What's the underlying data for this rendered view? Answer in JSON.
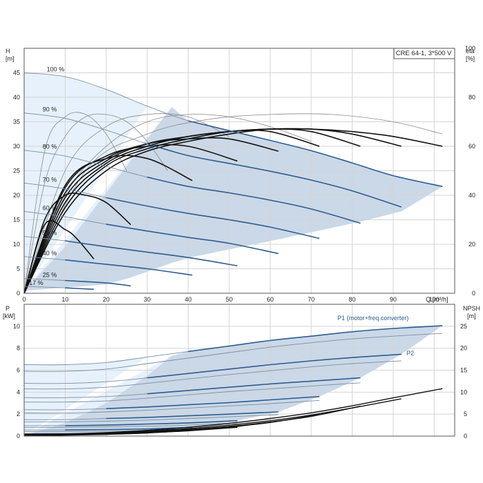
{
  "title_box": "CRE 64-1, 3*500 V",
  "chart_data": [
    {
      "type": "line",
      "name_role": "upper",
      "title": "CRE 64-1, 3*500 V",
      "xlabel": "Q [m³/h]",
      "ylabel_left": "H\n[m]",
      "ylabel_right": "eta\n[%]",
      "xlim": [
        0,
        105
      ],
      "ylim_left": [
        0,
        50
      ],
      "ylim_right": [
        0,
        100
      ],
      "x_ticks": [
        0,
        10,
        20,
        30,
        40,
        50,
        60,
        70,
        80,
        90,
        100
      ],
      "y_ticks_left": [
        0,
        5,
        10,
        15,
        20,
        25,
        30,
        35,
        40,
        45
      ],
      "y_ticks_right": [
        0,
        20,
        40,
        60,
        80,
        100
      ],
      "grid": true,
      "head_curves": [
        {
          "label": "100 %",
          "x": [
            0,
            10,
            20,
            30,
            40,
            50,
            60,
            70,
            80,
            90,
            102
          ],
          "y": [
            45,
            44.2,
            41.6,
            38.2,
            35.2,
            33.2,
            31.2,
            29.1,
            26.6,
            24.0,
            21.8
          ]
        },
        {
          "label": "90 %",
          "x": [
            0,
            10,
            20,
            30,
            40,
            50,
            60,
            70,
            80,
            92
          ],
          "y": [
            36.8,
            35.7,
            33.3,
            30.5,
            28.1,
            26.5,
            24.9,
            23.1,
            20.9,
            17.6
          ]
        },
        {
          "label": "80 %",
          "x": [
            0,
            10,
            20,
            30,
            40,
            50,
            60,
            70,
            82
          ],
          "y": [
            29.2,
            28.0,
            25.9,
            23.7,
            21.8,
            20.5,
            19.0,
            17.2,
            14.3
          ]
        },
        {
          "label": "70 %",
          "x": [
            0,
            10,
            20,
            30,
            40,
            50,
            60,
            72
          ],
          "y": [
            22.5,
            21.3,
            19.5,
            17.8,
            16.3,
            15.0,
            13.5,
            11.2
          ]
        },
        {
          "label": "60 %",
          "x": [
            0,
            10,
            20,
            30,
            40,
            50,
            62
          ],
          "y": [
            16.7,
            15.6,
            14.1,
            12.7,
            11.4,
            10.2,
            8.1
          ]
        },
        {
          "label": "50 %",
          "x": [
            0,
            10,
            20,
            30,
            40,
            52
          ],
          "y": [
            11.6,
            10.7,
            9.5,
            8.4,
            7.3,
            5.6
          ]
        },
        {
          "label": "40 %",
          "x": [
            0,
            10,
            20,
            30,
            41
          ],
          "y": [
            7.5,
            6.8,
            5.9,
            5.0,
            3.7
          ]
        },
        {
          "label": "25 %",
          "x": [
            0,
            10,
            20,
            26
          ],
          "y": [
            3.0,
            2.6,
            2.1,
            1.5
          ]
        },
        {
          "label": "17 %",
          "x": [
            0,
            10,
            17
          ],
          "y": [
            1.4,
            1.1,
            0.8
          ]
        }
      ],
      "operating_range": {
        "x": [
          0,
          20,
          26,
          36,
          41,
          52,
          62,
          72,
          82,
          92,
          102,
          102,
          90,
          80,
          70,
          60,
          50,
          40,
          36,
          30,
          20,
          10,
          0
        ],
        "y": [
          0.5,
          1.8,
          3.2,
          6.2,
          7.4,
          9.3,
          11.0,
          12.8,
          14.6,
          16.7,
          21.8,
          21.8,
          24.0,
          26.6,
          29.1,
          31.2,
          33.2,
          35.2,
          38.0,
          31.5,
          20.5,
          9.5,
          0.5
        ]
      },
      "efficiency_curves": [
        {
          "x": [
            0,
            10,
            20,
            30,
            40,
            50,
            60,
            70,
            80,
            90,
            102
          ],
          "eta": [
            0,
            33,
            50,
            58,
            62,
            65,
            67,
            67,
            66,
            64,
            60
          ]
        },
        {
          "x": [
            0,
            10,
            20,
            30,
            40,
            50,
            60,
            70,
            80,
            92
          ],
          "eta": [
            0,
            35,
            52,
            59,
            63,
            66,
            67,
            67,
            65,
            60
          ]
        },
        {
          "x": [
            0,
            10,
            20,
            30,
            40,
            50,
            60,
            70,
            82
          ],
          "eta": [
            0,
            37,
            53,
            60,
            64,
            66,
            67,
            66,
            60
          ]
        },
        {
          "x": [
            0,
            10,
            20,
            30,
            40,
            50,
            60,
            72
          ],
          "eta": [
            0,
            39,
            54,
            61,
            64,
            66,
            66,
            60
          ]
        },
        {
          "x": [
            0,
            10,
            20,
            30,
            40,
            50,
            62
          ],
          "eta": [
            0,
            41,
            55,
            61,
            63,
            63,
            58
          ]
        },
        {
          "x": [
            0,
            10,
            20,
            30,
            40,
            52
          ],
          "eta": [
            0,
            43,
            56,
            60,
            60,
            54
          ]
        },
        {
          "x": [
            0,
            10,
            20,
            30,
            41
          ],
          "eta": [
            0,
            44,
            55,
            55,
            46
          ]
        },
        {
          "x": [
            0,
            5,
            10,
            15,
            20,
            26
          ],
          "eta": [
            0,
            30,
            40,
            40,
            37,
            28
          ]
        },
        {
          "x": [
            0,
            5,
            10,
            13,
            17
          ],
          "eta": [
            0,
            28,
            26,
            22,
            14
          ]
        }
      ],
      "reference_eta_curves": [
        {
          "x": [
            0,
            5,
            10,
            15,
            20,
            25
          ],
          "eta": [
            0,
            58,
            72,
            73,
            65,
            50
          ]
        },
        {
          "x": [
            0,
            5,
            10,
            15,
            20,
            25,
            30,
            35
          ],
          "eta": [
            0,
            45,
            64,
            72,
            73,
            70,
            62,
            50
          ]
        },
        {
          "x": [
            0,
            10,
            20,
            30,
            40,
            50
          ],
          "eta": [
            0,
            50,
            68,
            73,
            72,
            64
          ]
        },
        {
          "x": [
            0,
            10,
            20,
            30,
            40,
            50,
            60,
            70
          ],
          "eta": [
            0,
            40,
            60,
            70,
            73,
            72,
            68,
            62
          ]
        },
        {
          "x": [
            0,
            15,
            30,
            45,
            60,
            75,
            90,
            102
          ],
          "eta": [
            0,
            50,
            65,
            71,
            73,
            73,
            70,
            65
          ]
        }
      ]
    },
    {
      "type": "line",
      "name_role": "lower",
      "xlabel": "",
      "ylabel_left": "P\n[kW]",
      "ylabel_right": "NPSH\n[m]",
      "xlim": [
        0,
        105
      ],
      "ylim_left": [
        0,
        12
      ],
      "ylim_right": [
        0,
        30
      ],
      "x_ticks": [
        0,
        10,
        20,
        30,
        40,
        50,
        60,
        70,
        80,
        90,
        100
      ],
      "y_ticks_left": [
        0,
        2,
        4,
        6,
        8,
        10
      ],
      "y_ticks_right": [
        0,
        5,
        10,
        15,
        20,
        25
      ],
      "grid": true,
      "annotations": [
        "P1 (motor+freq.converter)",
        "P2"
      ],
      "power_p1_curves": [
        {
          "x": [
            0,
            10,
            20,
            30,
            40,
            50,
            60,
            70,
            80,
            90,
            102
          ],
          "y": [
            6.5,
            6.5,
            6.7,
            7.2,
            7.7,
            8.2,
            8.7,
            9.1,
            9.5,
            9.8,
            10.05
          ]
        },
        {
          "x": [
            0,
            10,
            20,
            30,
            40,
            50,
            60,
            70,
            80,
            92
          ],
          "y": [
            4.8,
            4.8,
            4.95,
            5.3,
            5.7,
            6.1,
            6.5,
            6.85,
            7.15,
            7.45
          ]
        },
        {
          "x": [
            0,
            10,
            20,
            30,
            40,
            50,
            60,
            70,
            82
          ],
          "y": [
            3.5,
            3.5,
            3.6,
            3.85,
            4.15,
            4.45,
            4.75,
            5.0,
            5.3
          ]
        },
        {
          "x": [
            0,
            10,
            20,
            30,
            40,
            50,
            60,
            72
          ],
          "y": [
            2.4,
            2.4,
            2.5,
            2.65,
            2.85,
            3.05,
            3.3,
            3.6
          ]
        },
        {
          "x": [
            0,
            10,
            20,
            30,
            40,
            50,
            62
          ],
          "y": [
            1.5,
            1.5,
            1.6,
            1.7,
            1.85,
            2.0,
            2.2
          ]
        },
        {
          "x": [
            0,
            10,
            20,
            30,
            40,
            52
          ],
          "y": [
            0.95,
            0.95,
            1.0,
            1.1,
            1.2,
            1.4
          ]
        },
        {
          "x": [
            0,
            10,
            20,
            30,
            41
          ],
          "y": [
            0.55,
            0.55,
            0.6,
            0.65,
            0.8
          ]
        },
        {
          "x": [
            0,
            10,
            20,
            26
          ],
          "y": [
            0.2,
            0.2,
            0.25,
            0.3
          ]
        }
      ],
      "power_p2_curves": [
        {
          "x": [
            0,
            10,
            20,
            30,
            40,
            50,
            60,
            70,
            80,
            90,
            102
          ],
          "y": [
            5.9,
            5.9,
            6.1,
            6.6,
            7.1,
            7.6,
            8.1,
            8.5,
            8.85,
            9.1,
            9.35
          ]
        },
        {
          "x": [
            0,
            10,
            20,
            30,
            40,
            50,
            60,
            70,
            80,
            92
          ],
          "y": [
            4.3,
            4.3,
            4.45,
            4.8,
            5.2,
            5.6,
            5.95,
            6.3,
            6.6,
            6.85
          ]
        },
        {
          "x": [
            0,
            10,
            20,
            30,
            40,
            50,
            60,
            70,
            82
          ],
          "y": [
            3.1,
            3.1,
            3.2,
            3.45,
            3.75,
            4.05,
            4.3,
            4.55,
            4.85
          ]
        },
        {
          "x": [
            0,
            10,
            20,
            30,
            40,
            50,
            60,
            72
          ],
          "y": [
            2.1,
            2.1,
            2.2,
            2.35,
            2.55,
            2.75,
            2.95,
            3.25
          ]
        },
        {
          "x": [
            0,
            10,
            20,
            30,
            40,
            50,
            62
          ],
          "y": [
            1.3,
            1.3,
            1.35,
            1.45,
            1.6,
            1.75,
            1.95
          ]
        },
        {
          "x": [
            0,
            10,
            20,
            30,
            40,
            52
          ],
          "y": [
            0.8,
            0.8,
            0.85,
            0.9,
            1.0,
            1.2
          ]
        },
        {
          "x": [
            0,
            10,
            20,
            30,
            41
          ],
          "y": [
            0.4,
            0.4,
            0.45,
            0.5,
            0.6
          ]
        }
      ],
      "npsh_curves": [
        {
          "x": [
            0,
            10,
            20,
            30,
            40,
            50,
            60,
            70,
            80,
            90,
            102
          ],
          "y": [
            0.4,
            0.5,
            0.8,
            1.3,
            2.0,
            2.9,
            4.0,
            5.3,
            6.9,
            8.7,
            10.8
          ]
        },
        {
          "x": [
            0,
            10,
            20,
            30,
            40,
            50,
            60,
            70,
            80,
            92
          ],
          "y": [
            0.35,
            0.45,
            0.7,
            1.1,
            1.7,
            2.5,
            3.5,
            4.8,
            6.4,
            8.5
          ]
        },
        {
          "x": [
            0,
            10,
            20,
            30,
            40,
            50,
            60,
            70,
            82
          ],
          "y": [
            0.3,
            0.4,
            0.6,
            1.0,
            1.5,
            2.2,
            3.2,
            4.5,
            6.8
          ]
        },
        {
          "x": [
            0,
            10,
            20,
            30,
            40,
            50,
            60,
            72
          ],
          "y": [
            0.25,
            0.35,
            0.55,
            0.9,
            1.4,
            2.1,
            3.1,
            4.9
          ]
        },
        {
          "x": [
            0,
            10,
            20,
            30,
            40,
            50,
            62
          ],
          "y": [
            0.2,
            0.3,
            0.5,
            0.8,
            1.3,
            2.0,
            3.4
          ]
        },
        {
          "x": [
            0,
            10,
            20,
            30,
            40,
            52
          ],
          "y": [
            0.15,
            0.25,
            0.45,
            0.75,
            1.2,
            2.0
          ]
        },
        {
          "x": [
            0,
            10,
            20,
            30,
            41
          ],
          "y": [
            0.1,
            0.2,
            0.4,
            0.7,
            1.3
          ]
        }
      ],
      "operating_range": {
        "x": [
          0,
          20,
          26,
          36,
          41,
          52,
          62,
          72,
          82,
          92,
          102,
          102,
          90,
          80,
          70,
          60,
          50,
          40,
          36,
          30,
          20,
          10,
          0
        ],
        "y": [
          0.05,
          0.1,
          0.3,
          0.6,
          0.8,
          1.4,
          2.2,
          3.6,
          5.3,
          7.45,
          10.05,
          10.05,
          9.8,
          9.5,
          9.1,
          8.7,
          8.2,
          7.7,
          7.3,
          5.5,
          3.0,
          1.2,
          0.05
        ]
      }
    }
  ]
}
